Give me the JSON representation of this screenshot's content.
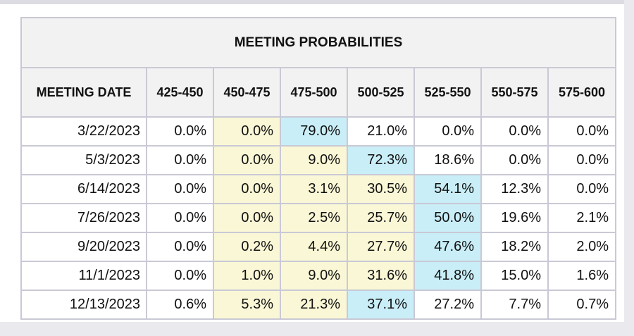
{
  "table": {
    "title": "MEETING PROBABILITIES",
    "date_header": "MEETING DATE",
    "columns": [
      "425-450",
      "450-475",
      "475-500",
      "500-525",
      "525-550",
      "550-575",
      "575-600"
    ]
  },
  "chart_data": {
    "type": "table",
    "title": "MEETING PROBABILITIES",
    "row_header": "MEETING DATE",
    "columns": [
      "425-450",
      "450-475",
      "475-500",
      "500-525",
      "525-550",
      "550-575",
      "575-600"
    ],
    "rows": [
      {
        "date": "3/22/2023",
        "values": [
          "0.0%",
          "0.0%",
          "79.0%",
          "21.0%",
          "0.0%",
          "0.0%",
          "0.0%"
        ],
        "highlight": [
          null,
          "yellow",
          "blue",
          null,
          null,
          null,
          null
        ]
      },
      {
        "date": "5/3/2023",
        "values": [
          "0.0%",
          "0.0%",
          "9.0%",
          "72.3%",
          "18.6%",
          "0.0%",
          "0.0%"
        ],
        "highlight": [
          null,
          "yellow",
          "yellow",
          "blue",
          null,
          null,
          null
        ]
      },
      {
        "date": "6/14/2023",
        "values": [
          "0.0%",
          "0.0%",
          "3.1%",
          "30.5%",
          "54.1%",
          "12.3%",
          "0.0%"
        ],
        "highlight": [
          null,
          "yellow",
          "yellow",
          "yellow",
          "blue",
          null,
          null
        ]
      },
      {
        "date": "7/26/2023",
        "values": [
          "0.0%",
          "0.0%",
          "2.5%",
          "25.7%",
          "50.0%",
          "19.6%",
          "2.1%"
        ],
        "highlight": [
          null,
          "yellow",
          "yellow",
          "yellow",
          "blue",
          null,
          null
        ]
      },
      {
        "date": "9/20/2023",
        "values": [
          "0.0%",
          "0.2%",
          "4.4%",
          "27.7%",
          "47.6%",
          "18.2%",
          "2.0%"
        ],
        "highlight": [
          null,
          "yellow",
          "yellow",
          "yellow",
          "blue",
          null,
          null
        ]
      },
      {
        "date": "11/1/2023",
        "values": [
          "0.0%",
          "1.0%",
          "9.0%",
          "31.6%",
          "41.8%",
          "15.0%",
          "1.6%"
        ],
        "highlight": [
          null,
          "yellow",
          "yellow",
          "yellow",
          "blue",
          null,
          null
        ]
      },
      {
        "date": "12/13/2023",
        "values": [
          "0.6%",
          "5.3%",
          "21.3%",
          "37.1%",
          "27.2%",
          "7.7%",
          "0.7%"
        ],
        "highlight": [
          null,
          "yellow",
          "yellow",
          "blue",
          null,
          null,
          null
        ]
      }
    ]
  },
  "colors": {
    "highlight_yellow": "#faf7d6",
    "highlight_blue": "#c9eef7",
    "header_bg": "#f2f2f2",
    "border": "#c9c9d6"
  }
}
